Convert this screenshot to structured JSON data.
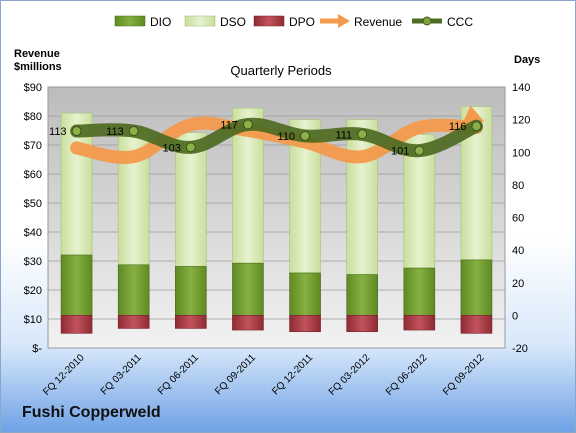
{
  "company_name": "Fushi Copperweld",
  "chart_data": {
    "type": "bar",
    "title": "Quarterly Periods",
    "left_axis_label_line1": "Revenue",
    "left_axis_label_line2": "$millions",
    "right_axis_label": "Days",
    "categories": [
      "FQ 12-2010",
      "FQ 03-2011",
      "FQ 06-2011",
      "FQ 09-2011",
      "FQ 12-2011",
      "FQ 03-2012",
      "FQ 06-2012",
      "FQ 09-2012"
    ],
    "left_ticks": [
      "$-",
      "$10",
      "$20",
      "$30",
      "$40",
      "$50",
      "$60",
      "$70",
      "$80",
      "$90"
    ],
    "right_ticks": [
      "-20",
      "0",
      "20",
      "40",
      "60",
      "80",
      "100",
      "120",
      "140"
    ],
    "left_ylim": [
      0,
      90
    ],
    "right_ylim": [
      -20,
      140
    ],
    "legend": [
      {
        "name": "DIO",
        "color": "#77a033",
        "kind": "bar"
      },
      {
        "name": "DSO",
        "color": "#d7e8b3",
        "kind": "bar"
      },
      {
        "name": "DPO",
        "color": "#b3404a",
        "kind": "bar"
      },
      {
        "name": "Revenue",
        "color": "#f39a4c",
        "kind": "line"
      },
      {
        "name": "CCC",
        "color": "#4d6a22",
        "kind": "line"
      }
    ],
    "series": [
      {
        "name": "DIO",
        "axis": "right",
        "values": [
          37,
          31,
          30,
          32,
          26,
          25,
          29,
          34
        ]
      },
      {
        "name": "DSO",
        "axis": "right",
        "values": [
          87,
          84,
          82,
          95,
          94,
          95,
          82,
          94
        ]
      },
      {
        "name": "DPO",
        "axis": "right",
        "values": [
          -11,
          -8,
          -8,
          -9,
          -10,
          -10,
          -9,
          -11
        ]
      },
      {
        "name": "Revenue",
        "axis": "left",
        "values": [
          69,
          66,
          77,
          75,
          71,
          66,
          76,
          76
        ]
      },
      {
        "name": "CCC",
        "axis": "right",
        "values": [
          113,
          113,
          103,
          117,
          110,
          111,
          101,
          116
        ]
      }
    ],
    "ccc_labels": [
      "113",
      "113",
      "103",
      "117",
      "110",
      "111",
      "101",
      "116"
    ]
  }
}
